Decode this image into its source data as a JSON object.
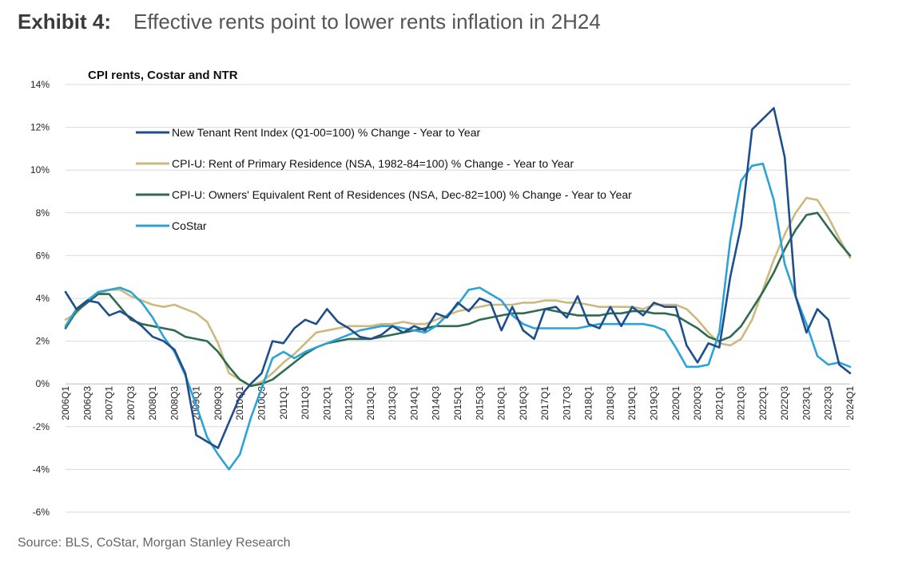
{
  "header": {
    "exhibit": "Exhibit 4:",
    "headline": "Effective rents point to lower rents inflation in 2H24"
  },
  "source": "Source: BLS, CoStar, Morgan Stanley Research",
  "chart_data": {
    "type": "line",
    "title": "CPI rents, Costar and NTR",
    "xlabel": "",
    "ylabel": "",
    "ylim": [
      -6,
      14
    ],
    "yticks": [
      "-6%",
      "-4%",
      "-2%",
      "0%",
      "2%",
      "4%",
      "6%",
      "8%",
      "10%",
      "12%",
      "14%"
    ],
    "grid": true,
    "legend_position": "upper-left",
    "x_tick_labels": [
      "2006Q1",
      "2006Q3",
      "2007Q1",
      "2007Q3",
      "2008Q1",
      "2008Q3",
      "2009Q1",
      "2009Q3",
      "2010Q1",
      "2010Q3",
      "2011Q1",
      "2011Q3",
      "2012Q1",
      "2012Q3",
      "2013Q1",
      "2013Q3",
      "2014Q1",
      "2014Q3",
      "2015Q1",
      "2015Q3",
      "2016Q1",
      "2016Q3",
      "2017Q1",
      "2017Q3",
      "2018Q1",
      "2018Q3",
      "2019Q1",
      "2019Q3",
      "2020Q1",
      "2020Q3",
      "2021Q1",
      "2021Q3",
      "2022Q1",
      "2022Q3",
      "2023Q1",
      "2023Q3",
      "2024Q1"
    ],
    "x": [
      "2006Q1",
      "2006Q2",
      "2006Q3",
      "2006Q4",
      "2007Q1",
      "2007Q2",
      "2007Q3",
      "2007Q4",
      "2008Q1",
      "2008Q2",
      "2008Q3",
      "2008Q4",
      "2009Q1",
      "2009Q2",
      "2009Q3",
      "2009Q4",
      "2010Q1",
      "2010Q2",
      "2010Q3",
      "2010Q4",
      "2011Q1",
      "2011Q2",
      "2011Q3",
      "2011Q4",
      "2012Q1",
      "2012Q2",
      "2012Q3",
      "2012Q4",
      "2013Q1",
      "2013Q2",
      "2013Q3",
      "2013Q4",
      "2014Q1",
      "2014Q2",
      "2014Q3",
      "2014Q4",
      "2015Q1",
      "2015Q2",
      "2015Q3",
      "2015Q4",
      "2016Q1",
      "2016Q2",
      "2016Q3",
      "2016Q4",
      "2017Q1",
      "2017Q2",
      "2017Q3",
      "2017Q4",
      "2018Q1",
      "2018Q2",
      "2018Q3",
      "2018Q4",
      "2019Q1",
      "2019Q2",
      "2019Q3",
      "2019Q4",
      "2020Q1",
      "2020Q2",
      "2020Q3",
      "2020Q4",
      "2021Q1",
      "2021Q2",
      "2021Q3",
      "2021Q4",
      "2022Q1",
      "2022Q2",
      "2022Q3",
      "2022Q4",
      "2023Q1",
      "2023Q2",
      "2023Q3",
      "2023Q4",
      "2024Q1"
    ],
    "series": [
      {
        "name": "New Tenant Rent Index (Q1-00=100) % Change - Year to Year",
        "color": "#1f4e8c",
        "values": [
          4.3,
          3.5,
          3.9,
          3.8,
          3.2,
          3.4,
          3.1,
          2.7,
          2.2,
          2.0,
          1.6,
          0.5,
          -2.4,
          -2.7,
          -3.0,
          -1.8,
          -0.6,
          0.0,
          0.5,
          2.0,
          1.9,
          2.6,
          3.0,
          2.8,
          3.5,
          2.9,
          2.6,
          2.2,
          2.1,
          2.3,
          2.7,
          2.4,
          2.7,
          2.5,
          3.3,
          3.1,
          3.8,
          3.4,
          4.0,
          3.8,
          2.5,
          3.6,
          2.5,
          2.1,
          3.5,
          3.6,
          3.1,
          4.1,
          2.8,
          2.6,
          3.6,
          2.7,
          3.6,
          3.2,
          3.8,
          3.6,
          3.6,
          1.8,
          1.0,
          1.9,
          1.7,
          5.0,
          7.4,
          11.9,
          12.4,
          12.9,
          10.6,
          4.1,
          2.4,
          3.5,
          3.0,
          0.9,
          0.5
        ]
      },
      {
        "name": "CPI-U: Rent of Primary Residence (NSA, 1982-84=100) % Change - Year to Year",
        "color": "#cdb97e",
        "values": [
          3.0,
          3.3,
          3.9,
          4.2,
          4.4,
          4.4,
          4.1,
          3.9,
          3.7,
          3.6,
          3.7,
          3.5,
          3.3,
          2.9,
          1.9,
          0.5,
          0.2,
          -0.1,
          0.1,
          0.5,
          1.0,
          1.4,
          1.9,
          2.4,
          2.5,
          2.6,
          2.7,
          2.7,
          2.7,
          2.8,
          2.8,
          2.9,
          2.8,
          2.8,
          3.0,
          3.2,
          3.4,
          3.5,
          3.6,
          3.7,
          3.7,
          3.7,
          3.8,
          3.8,
          3.9,
          3.9,
          3.8,
          3.8,
          3.7,
          3.6,
          3.6,
          3.6,
          3.6,
          3.5,
          3.7,
          3.7,
          3.7,
          3.5,
          3.0,
          2.4,
          1.9,
          1.8,
          2.1,
          3.0,
          4.4,
          5.8,
          7.0,
          8.0,
          8.7,
          8.6,
          7.8,
          6.8,
          5.9
        ]
      },
      {
        "name": "CPI-U: Owners' Equivalent Rent of Residences (NSA, Dec-82=100) % Change - Year to Year",
        "color": "#2e6b4f",
        "values": [
          2.6,
          3.4,
          3.8,
          4.2,
          4.2,
          3.6,
          3.0,
          2.8,
          2.7,
          2.6,
          2.5,
          2.2,
          2.1,
          2.0,
          1.5,
          0.8,
          0.2,
          -0.1,
          0.0,
          0.2,
          0.6,
          1.0,
          1.4,
          1.7,
          1.9,
          2.0,
          2.1,
          2.1,
          2.1,
          2.2,
          2.3,
          2.4,
          2.5,
          2.6,
          2.7,
          2.7,
          2.7,
          2.8,
          3.0,
          3.1,
          3.2,
          3.3,
          3.3,
          3.4,
          3.5,
          3.4,
          3.3,
          3.2,
          3.2,
          3.2,
          3.3,
          3.3,
          3.4,
          3.4,
          3.3,
          3.3,
          3.2,
          2.9,
          2.6,
          2.2,
          2.0,
          2.2,
          2.7,
          3.5,
          4.3,
          5.2,
          6.3,
          7.2,
          7.9,
          8.0,
          7.3,
          6.6,
          6.0
        ]
      },
      {
        "name": "CoStar",
        "color": "#2ba3d8",
        "values": [
          2.7,
          3.5,
          3.9,
          4.3,
          4.4,
          4.5,
          4.3,
          3.8,
          3.1,
          2.2,
          1.5,
          0.4,
          -1.0,
          -2.5,
          -3.3,
          -4.0,
          -3.3,
          -1.6,
          -0.2,
          1.2,
          1.5,
          1.2,
          1.5,
          1.7,
          1.9,
          2.1,
          2.3,
          2.5,
          2.6,
          2.7,
          2.7,
          2.6,
          2.5,
          2.4,
          2.7,
          3.2,
          3.7,
          4.4,
          4.5,
          4.2,
          3.9,
          3.2,
          2.8,
          2.6,
          2.6,
          2.6,
          2.6,
          2.6,
          2.7,
          2.8,
          2.8,
          2.8,
          2.8,
          2.8,
          2.7,
          2.5,
          1.7,
          0.8,
          0.8,
          0.9,
          2.4,
          6.7,
          9.5,
          10.2,
          10.3,
          8.6,
          5.6,
          4.1,
          2.8,
          1.3,
          0.9,
          1.0,
          0.8
        ]
      }
    ]
  }
}
